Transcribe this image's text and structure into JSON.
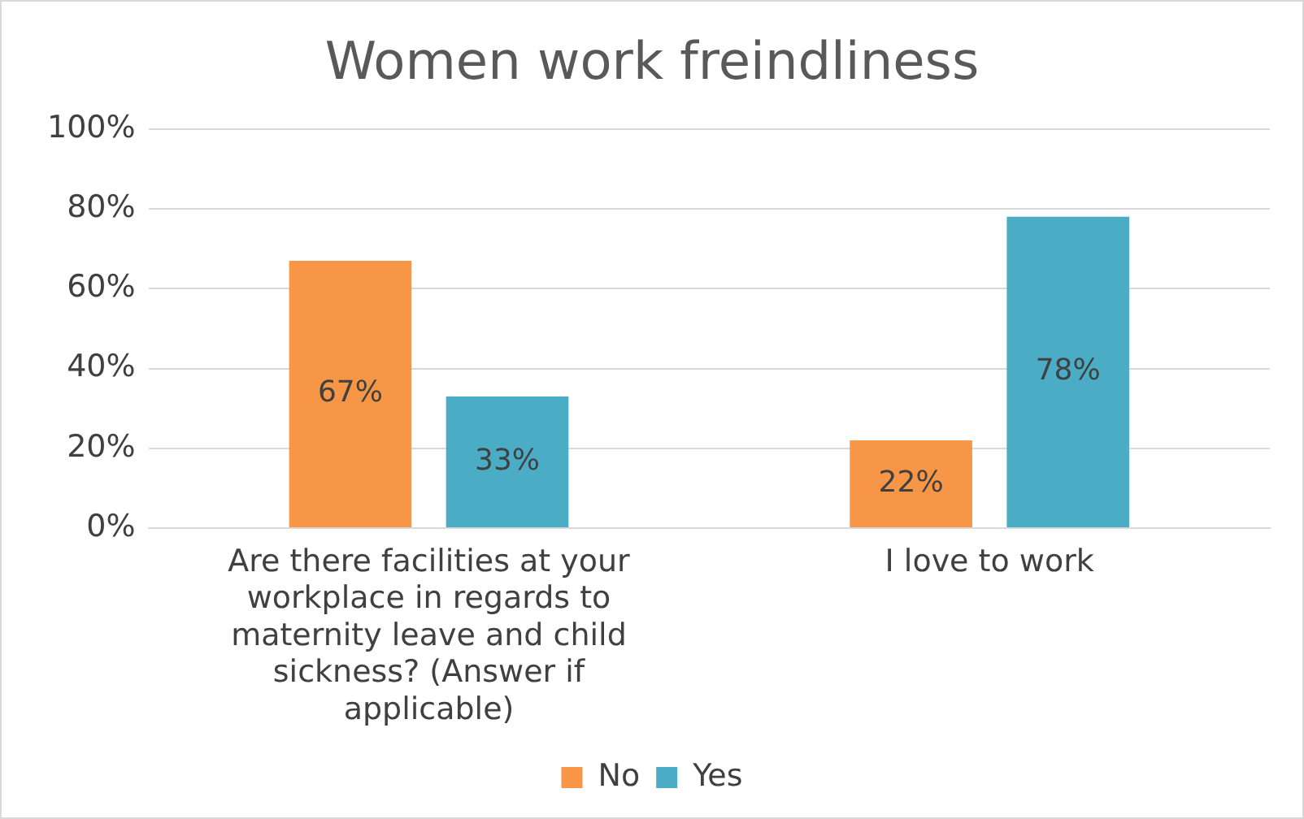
{
  "chart_data": {
    "type": "bar",
    "title": "Women work freindliness",
    "categories": [
      "Are there facilities at your workplace in regards to maternity leave and child sickness? (Answer if applicable)",
      "I love to work"
    ],
    "series": [
      {
        "name": "No",
        "color": "#f79646",
        "values": [
          67,
          22
        ],
        "value_labels": [
          "67%",
          "22%"
        ]
      },
      {
        "name": "Yes",
        "color": "#4bacc6",
        "values": [
          33,
          78
        ],
        "value_labels": [
          "33%",
          "78%"
        ]
      }
    ],
    "ylim": [
      0,
      100
    ],
    "yticks": [
      {
        "value": 0,
        "label": "0%"
      },
      {
        "value": 20,
        "label": "20%"
      },
      {
        "value": 40,
        "label": "40%"
      },
      {
        "value": 60,
        "label": "60%"
      },
      {
        "value": 80,
        "label": "80%"
      },
      {
        "value": 100,
        "label": "100%"
      }
    ],
    "grid": "y",
    "legend": "bottom"
  }
}
